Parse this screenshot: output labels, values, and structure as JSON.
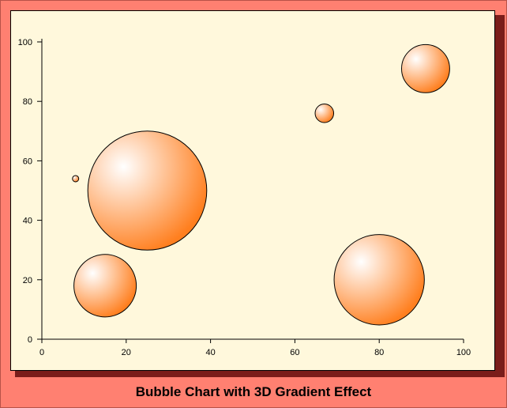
{
  "chart_data": {
    "type": "scatter",
    "title": "Bubble Chart with 3D Gradient Effect",
    "xlabel": "",
    "ylabel": "",
    "xlim": [
      0,
      100
    ],
    "ylim": [
      0,
      100
    ],
    "x_ticks": [
      0,
      20,
      40,
      60,
      80,
      100
    ],
    "y_ticks": [
      0,
      20,
      40,
      60,
      80,
      100
    ],
    "grid": false,
    "bubble_color": "#ff7f1f",
    "highlight_color": "#ffffff",
    "bubbles": [
      {
        "x": 8,
        "y": 54,
        "size": 0.75
      },
      {
        "x": 15,
        "y": 18,
        "size": 7.4
      },
      {
        "x": 25,
        "y": 50,
        "size": 14.1
      },
      {
        "x": 67,
        "y": 76,
        "size": 2.2
      },
      {
        "x": 80,
        "y": 20,
        "size": 10.7
      },
      {
        "x": 91,
        "y": 91,
        "size": 5.7
      }
    ]
  }
}
